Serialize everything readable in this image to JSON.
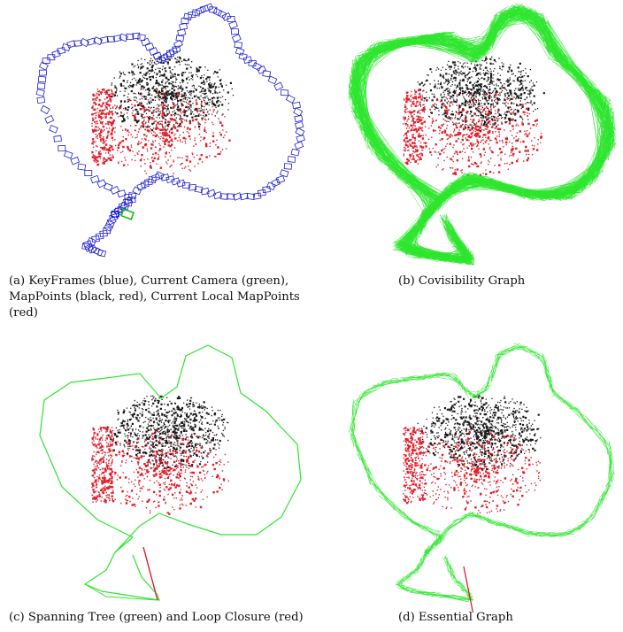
{
  "figure": {
    "panels": [
      {
        "id": "a",
        "caption": "(a) KeyFrames (blue), Current Camera (green), MapPoints (black, red), Current Local MapPoints (red)",
        "style": "keyframes"
      },
      {
        "id": "b",
        "caption": "(b) Covisibility Graph",
        "style": "covisibility"
      },
      {
        "id": "c",
        "caption": "(c) Spanning Tree (green) and Loop Closure (red)",
        "style": "spanning"
      },
      {
        "id": "d",
        "caption": "(d) Essential Graph",
        "style": "essential"
      }
    ]
  },
  "colors": {
    "keyframes": "#1f1fd0",
    "current_camera": "#18c018",
    "graph_green": "#2ee52e",
    "mappoints_black": "#1a1a1a",
    "mappoints_red": "#e0202c",
    "loop_closure": "#e01020"
  }
}
